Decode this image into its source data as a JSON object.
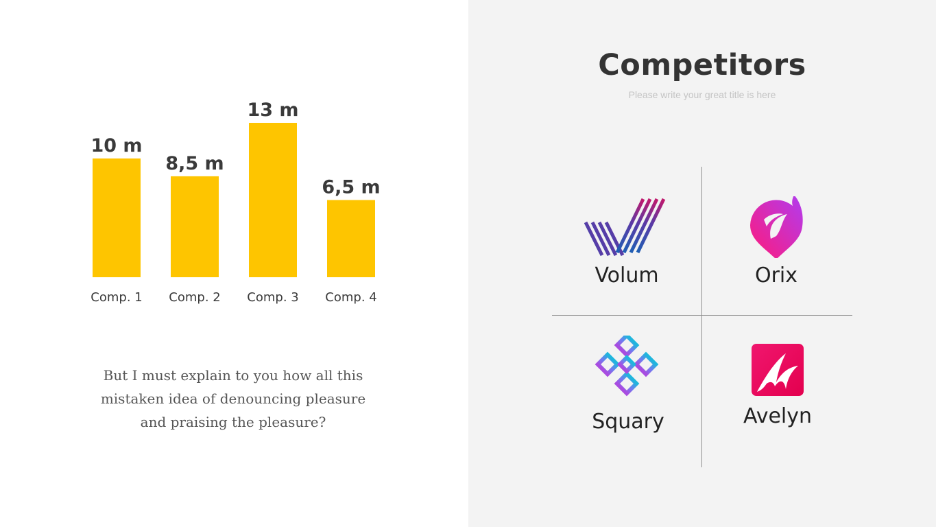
{
  "slide": {
    "title": "Competitors",
    "subtitle": "Please write your great title is here",
    "description": "But I must explain to you how all this mistaken idea of denouncing pleasure and praising the pleasure?"
  },
  "chart_data": {
    "type": "bar",
    "categories": [
      "Comp. 1",
      "Comp. 2",
      "Comp. 3",
      "Comp. 4"
    ],
    "values": [
      10,
      8.5,
      13,
      6.5
    ],
    "data_labels": [
      "10 m",
      "8,5 m",
      "13 m",
      "6,5 m"
    ],
    "title": "",
    "xlabel": "",
    "ylabel": "",
    "ylim": [
      0,
      13
    ],
    "grid": false,
    "color": "#fec500"
  },
  "competitors": [
    {
      "name": "Volum",
      "icon": "volum-logo-icon"
    },
    {
      "name": "Orix",
      "icon": "orix-logo-icon"
    },
    {
      "name": "Squary",
      "icon": "squary-logo-icon"
    },
    {
      "name": "Avelyn",
      "icon": "avelyn-logo-icon"
    }
  ],
  "colors": {
    "bar": "#fec500",
    "right_panel_bg": "#f3f3f3",
    "divider": "#8d8d8d",
    "title_text": "#333333",
    "subtitle_text": "#c4c4c4"
  }
}
